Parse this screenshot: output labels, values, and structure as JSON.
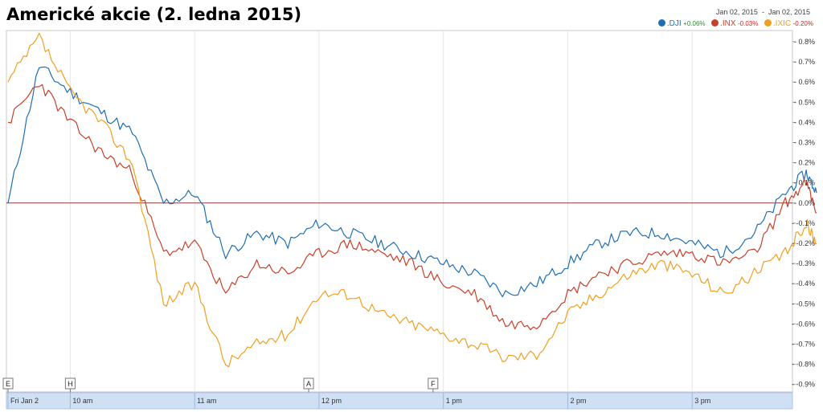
{
  "title": "Americké akcie (2. ledna 2015)",
  "date_range": {
    "from": "Jan 02, 2015",
    "separator": "-",
    "to": "Jan 02, 2015"
  },
  "legend": [
    {
      "symbol": ".DJI",
      "change": "+0.06%",
      "color": "#1f6fb4",
      "change_color": "#2a8a2a"
    },
    {
      "symbol": ".INX",
      "change": "-0.03%",
      "color": "#c8402a",
      "change_color": "#cc2222"
    },
    {
      "symbol": ".IXIC",
      "change": "-0.20%",
      "color": "#f0a020",
      "change_color": "#cc2222"
    }
  ],
  "chart_data": {
    "type": "line",
    "xlabel": "",
    "ylabel": "",
    "x_ticks": [
      "Fri Jan 2",
      "10 am",
      "11 am",
      "12 pm",
      "1 pm",
      "2 pm",
      "3 pm"
    ],
    "y_ticks": [
      "0.8%",
      "0.7%",
      "0.6%",
      "0.5%",
      "0.4%",
      "0.3%",
      "0.2%",
      "0.1%",
      "0.0%",
      "-0.1%",
      "-0.2%",
      "-0.3%",
      "-0.4%",
      "-0.5%",
      "-0.6%",
      "-0.7%",
      "-0.8%",
      "-0.9%"
    ],
    "ylim": [
      -0.9,
      0.8
    ],
    "x_unit": "time",
    "x_range": [
      "09:30",
      "16:00"
    ],
    "grid": "vertical",
    "legend_position": "top-right",
    "markers": [
      {
        "label": "E",
        "time": "09:30"
      },
      {
        "label": "H",
        "time": "10:00"
      },
      {
        "label": "A",
        "time": "11:55"
      },
      {
        "label": "F",
        "time": "12:55"
      }
    ],
    "x": [
      "09:30",
      "09:45",
      "10:00",
      "10:15",
      "10:30",
      "10:45",
      "11:00",
      "11:15",
      "11:30",
      "11:45",
      "12:00",
      "12:15",
      "12:30",
      "12:45",
      "13:00",
      "13:15",
      "13:30",
      "13:45",
      "14:00",
      "14:15",
      "14:30",
      "14:45",
      "15:00",
      "15:15",
      "15:30",
      "15:45",
      "15:55",
      "16:00"
    ],
    "series": [
      {
        "name": ".DJI",
        "values": [
          0.0,
          0.68,
          0.55,
          0.45,
          0.35,
          0.0,
          0.05,
          -0.25,
          -0.15,
          -0.2,
          -0.1,
          -0.15,
          -0.2,
          -0.25,
          -0.3,
          -0.35,
          -0.45,
          -0.4,
          -0.3,
          -0.2,
          -0.15,
          -0.15,
          -0.2,
          -0.25,
          -0.15,
          0.05,
          0.15,
          0.05
        ]
      },
      {
        "name": ".INX",
        "values": [
          0.4,
          0.6,
          0.4,
          0.25,
          0.15,
          -0.25,
          -0.2,
          -0.45,
          -0.3,
          -0.35,
          -0.25,
          -0.2,
          -0.25,
          -0.3,
          -0.4,
          -0.45,
          -0.6,
          -0.6,
          -0.45,
          -0.35,
          -0.3,
          -0.25,
          -0.25,
          -0.3,
          -0.25,
          0.0,
          0.1,
          -0.05
        ]
      },
      {
        "name": ".IXIC",
        "values": [
          0.6,
          0.82,
          0.55,
          0.4,
          0.2,
          -0.5,
          -0.4,
          -0.8,
          -0.7,
          -0.65,
          -0.45,
          -0.45,
          -0.55,
          -0.6,
          -0.65,
          -0.7,
          -0.77,
          -0.75,
          -0.55,
          -0.45,
          -0.35,
          -0.3,
          -0.35,
          -0.45,
          -0.35,
          -0.25,
          -0.1,
          -0.2
        ]
      }
    ]
  }
}
